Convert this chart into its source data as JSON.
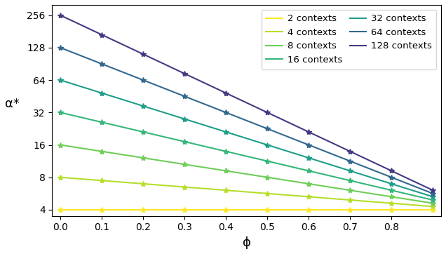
{
  "contexts": [
    2,
    4,
    8,
    16,
    32,
    64,
    128
  ],
  "colors": [
    "#fde725",
    "#b5de2b",
    "#6ece58",
    "#35b779",
    "#1f9e89",
    "#31688e",
    "#443983"
  ],
  "phi_values": [
    0.0,
    0.1,
    0.2,
    0.3,
    0.4,
    0.5,
    0.6,
    0.7,
    0.8,
    0.9
  ],
  "xlabel": "ϕ",
  "ylabel": "α*",
  "yticks": [
    4,
    8,
    16,
    32,
    64,
    128,
    256
  ],
  "ylim": [
    3.5,
    320
  ],
  "xlim": [
    -0.02,
    0.92
  ],
  "xticks": [
    0.0,
    0.1,
    0.2,
    0.3,
    0.4,
    0.5,
    0.6,
    0.7,
    0.8
  ]
}
